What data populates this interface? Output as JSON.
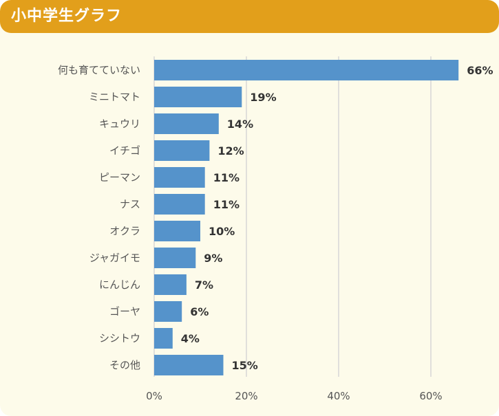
{
  "header": {
    "title": "小中学生グラフ"
  },
  "colors": {
    "header_bg": "#e29f1b",
    "card_bg": "#fdfbea",
    "bar": "#5593cb",
    "grid": "#d6d6d6"
  },
  "chart_data": {
    "type": "bar",
    "orientation": "horizontal",
    "title": "",
    "xlabel": "",
    "ylabel": "",
    "categories": [
      "何も育てていない",
      "ミニトマト",
      "キュウリ",
      "イチゴ",
      "ピーマン",
      "ナス",
      "オクラ",
      "ジャガイモ",
      "にんじん",
      "ゴーヤ",
      "シシトウ",
      "その他"
    ],
    "values": [
      66,
      19,
      14,
      12,
      11,
      11,
      10,
      9,
      7,
      6,
      4,
      15
    ],
    "value_labels": [
      "66%",
      "19%",
      "14%",
      "12%",
      "11%",
      "11%",
      "10%",
      "9%",
      "7%",
      "6%",
      "4%",
      "15%"
    ],
    "xlim": [
      0,
      70
    ],
    "x_ticks": [
      0,
      20,
      40,
      60
    ],
    "x_tick_labels": [
      "0%",
      "20%",
      "40%",
      "60%"
    ],
    "grid": true,
    "legend": "none"
  }
}
